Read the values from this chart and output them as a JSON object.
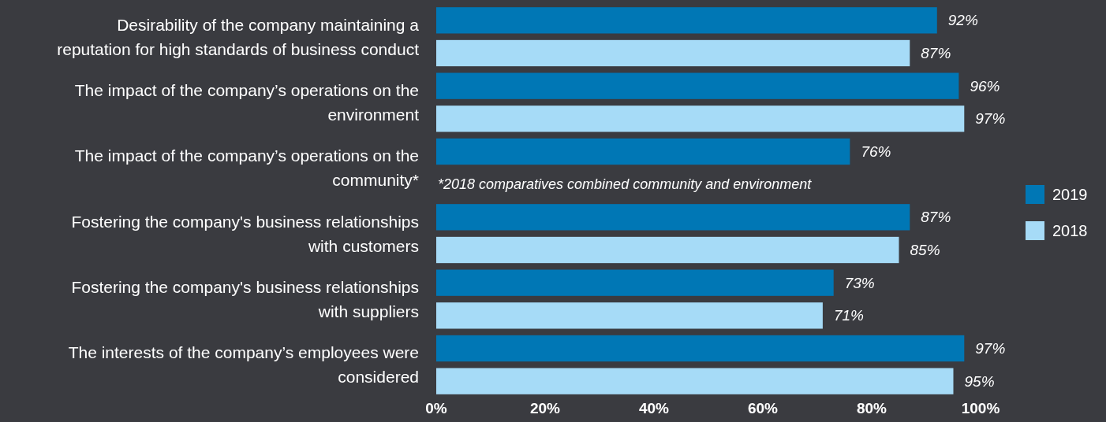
{
  "chart_data": {
    "type": "bar",
    "orientation": "horizontal",
    "categories": [
      "Desirability of the company maintaining a reputation for high standards of business conduct",
      "The impact of the company’s operations on the environment",
      "The impact of the company’s operations on the community*",
      "Fostering the company's business relationships with customers",
      "Fostering the company's business relationships with suppliers",
      "The interests of the company’s employees were considered"
    ],
    "series": [
      {
        "name": "2019",
        "color": "#0077b5",
        "values": [
          92,
          96,
          76,
          87,
          73,
          97
        ],
        "value_labels": [
          "92%",
          "96%",
          "76%",
          "87%",
          "73%",
          "97%"
        ]
      },
      {
        "name": "2018",
        "color": "#a6dbf7",
        "values": [
          87,
          97,
          null,
          85,
          71,
          95
        ],
        "value_labels": [
          "87%",
          "97%",
          null,
          "85%",
          "71%",
          "95%"
        ]
      }
    ],
    "xlim": [
      0,
      100
    ],
    "xticks": [
      {
        "value": 0,
        "label": "0%"
      },
      {
        "value": 20,
        "label": "20%"
      },
      {
        "value": 40,
        "label": "40%"
      },
      {
        "value": 60,
        "label": "60%"
      },
      {
        "value": 80,
        "label": "80%"
      },
      {
        "value": 100,
        "label": "100%"
      }
    ],
    "annotations": [
      "*2018 comparatives combined community and environment"
    ],
    "legend": "right",
    "grid": false
  }
}
